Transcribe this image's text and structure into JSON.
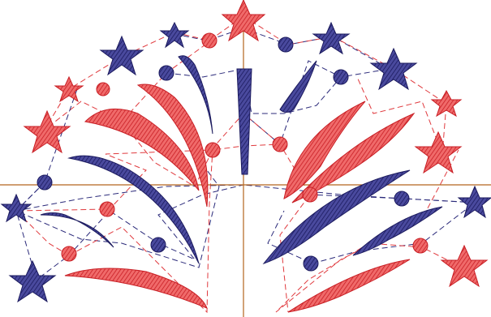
{
  "colors": {
    "red": "#e03a3e",
    "red_dark": "#c81e24",
    "blue": "#2b2a7a",
    "blue_dark": "#1b1a5e",
    "axis": "#b5651d",
    "background": "#ffffff"
  },
  "design": {
    "motif": "fireworks-burst",
    "stitch_style": "satin-with-running-stitch-jumps",
    "axes_visible": true
  }
}
